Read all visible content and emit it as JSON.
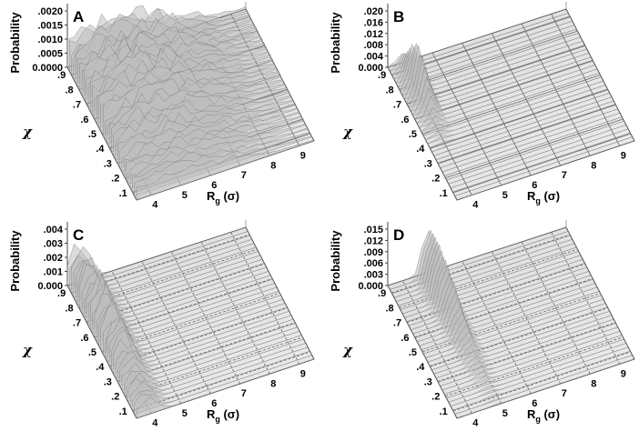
{
  "panels": [
    {
      "letter": "A",
      "zlabel": "Probability",
      "xlabel": "Rg (σ)",
      "xlabel_main": "R",
      "xlabel_sub": "g",
      "xlabel_tail": "(σ)",
      "ylabel": "χ",
      "z_ticks": [
        ".0020",
        ".0015",
        ".0010",
        ".0005",
        "0.0000"
      ],
      "x_ticks": [
        "4",
        "5",
        "6",
        "7",
        "8",
        "9"
      ],
      "y_ticks": [
        ".9",
        ".8",
        ".7",
        ".6",
        ".5",
        ".4",
        ".3",
        ".2",
        ".1"
      ],
      "grid_style": "solid",
      "chart_data": {
        "type": "surface",
        "x": "Rg (σ)",
        "xlim": [
          4,
          9
        ],
        "ylim": [
          0.1,
          0.9
        ],
        "zlim": [
          0,
          0.002
        ],
        "peak": {
          "x": 5.3,
          "y": 0.7,
          "z": 0.0018
        },
        "description_rg_range": [
          4.3,
          6.5
        ],
        "chi_range": [
          0.2,
          0.9
        ]
      }
    },
    {
      "letter": "B",
      "zlabel": "Probability",
      "xlabel": "Rg (σ)",
      "xlabel_main": "R",
      "xlabel_sub": "g",
      "xlabel_tail": "(σ)",
      "ylabel": "χ",
      "z_ticks": [
        ".020",
        ".016",
        ".012",
        ".008",
        ".004",
        "0.000"
      ],
      "x_ticks": [
        "4",
        "5",
        "6",
        "7",
        "8",
        "9"
      ],
      "y_ticks": [
        ".9",
        ".8",
        ".7",
        ".6",
        ".5",
        ".4",
        ".3",
        ".2",
        ".1"
      ],
      "grid_style": "solid",
      "chart_data": {
        "type": "surface",
        "xlim": [
          4,
          9
        ],
        "ylim": [
          0.1,
          0.9
        ],
        "zlim": [
          0,
          0.02
        ],
        "peak": {
          "x": 4.4,
          "y": 0.7,
          "z": 0.018
        }
      }
    },
    {
      "letter": "C",
      "zlabel": "Probability",
      "xlabel": "Rg (σ)",
      "xlabel_main": "R",
      "xlabel_sub": "g",
      "xlabel_tail": "(σ)",
      "ylabel": "χ",
      "z_ticks": [
        ".004",
        ".003",
        ".002",
        ".001",
        "0.000"
      ],
      "x_ticks": [
        "4",
        "5",
        "6",
        "7",
        "8",
        "9"
      ],
      "y_ticks": [
        ".9",
        ".8",
        ".7",
        ".6",
        ".5",
        ".4",
        ".3",
        ".2",
        ".1"
      ],
      "grid_style": "dashed",
      "chart_data": {
        "type": "surface",
        "xlim": [
          4,
          9
        ],
        "ylim": [
          0.1,
          0.9
        ],
        "zlim": [
          0,
          0.004
        ],
        "peak": {
          "x": 4.3,
          "y": 0.7,
          "z": 0.0038
        }
      }
    },
    {
      "letter": "D",
      "zlabel": "Probability",
      "xlabel": "Rg (σ)",
      "xlabel_main": "R",
      "xlabel_sub": "g",
      "xlabel_tail": "(σ)",
      "ylabel": "χ",
      "z_ticks": [
        ".015",
        ".012",
        ".009",
        ".006",
        ".003",
        "0.000"
      ],
      "x_ticks": [
        "4",
        "5",
        "6",
        "7",
        "8",
        "9"
      ],
      "y_ticks": [
        ".9",
        ".8",
        ".7",
        ".6",
        ".5",
        ".4",
        ".3",
        ".2",
        ".1"
      ],
      "grid_style": "dashed",
      "chart_data": {
        "type": "surface",
        "xlim": [
          4,
          9
        ],
        "ylim": [
          0.1,
          0.9
        ],
        "zlim": [
          0,
          0.015
        ],
        "peak": {
          "x": 5.1,
          "y": 0.8,
          "z": 0.014
        }
      }
    }
  ]
}
